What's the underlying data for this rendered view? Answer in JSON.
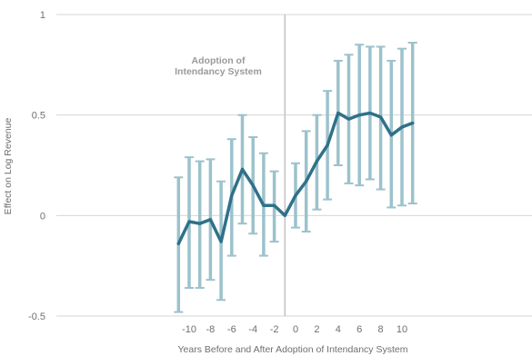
{
  "chart_data": {
    "type": "line",
    "title": "",
    "xlabel": "Years Before and After Adoption of Intendancy System",
    "ylabel": "Effect on Log Revenue",
    "xlim": [
      -11.5,
      11.2
    ],
    "ylim": [
      -0.5,
      1
    ],
    "xticks": [
      -10,
      -8,
      -6,
      -4,
      -2,
      0,
      2,
      4,
      6,
      8,
      10
    ],
    "xtick_labels": [
      "-10",
      "-8",
      "-6",
      "-4",
      "-2",
      "0",
      "2",
      "4",
      "6",
      "8",
      "10"
    ],
    "yticks": [
      -0.5,
      0,
      0.5,
      1
    ],
    "ytick_labels": [
      "-0.5",
      "0",
      "0.5",
      "1"
    ],
    "grid": "horizontal",
    "reference_line_x": -1,
    "annotation": [
      "Adoption of",
      "Intendancy System"
    ],
    "colors": {
      "line": "#2f7189",
      "error_bars": "#9cc2cc",
      "grid": "#d6d6d6",
      "reference": "#c2c2c2"
    },
    "series": [
      {
        "x": [
          -11,
          -10,
          -9,
          -8,
          -7,
          -6,
          -5,
          -4,
          -3,
          -2,
          -1,
          0,
          1,
          2,
          3,
          4,
          5,
          6,
          7,
          8,
          9,
          10,
          11
        ],
        "y": [
          -0.14,
          -0.03,
          -0.04,
          -0.02,
          -0.13,
          0.1,
          0.23,
          0.15,
          0.05,
          0.05,
          0.0,
          0.1,
          0.17,
          0.27,
          0.35,
          0.51,
          0.48,
          0.5,
          0.51,
          0.49,
          0.4,
          0.44,
          0.46
        ],
        "lower": [
          -0.48,
          -0.36,
          -0.36,
          -0.32,
          -0.42,
          -0.2,
          -0.04,
          -0.09,
          -0.2,
          -0.13,
          0.0,
          -0.06,
          -0.08,
          0.03,
          0.08,
          0.25,
          0.16,
          0.15,
          0.18,
          0.13,
          0.04,
          0.05,
          0.06
        ],
        "upper": [
          0.19,
          0.29,
          0.27,
          0.28,
          0.17,
          0.38,
          0.5,
          0.39,
          0.31,
          0.22,
          0.0,
          0.26,
          0.42,
          0.5,
          0.62,
          0.77,
          0.8,
          0.85,
          0.84,
          0.84,
          0.77,
          0.83,
          0.86
        ]
      }
    ]
  }
}
